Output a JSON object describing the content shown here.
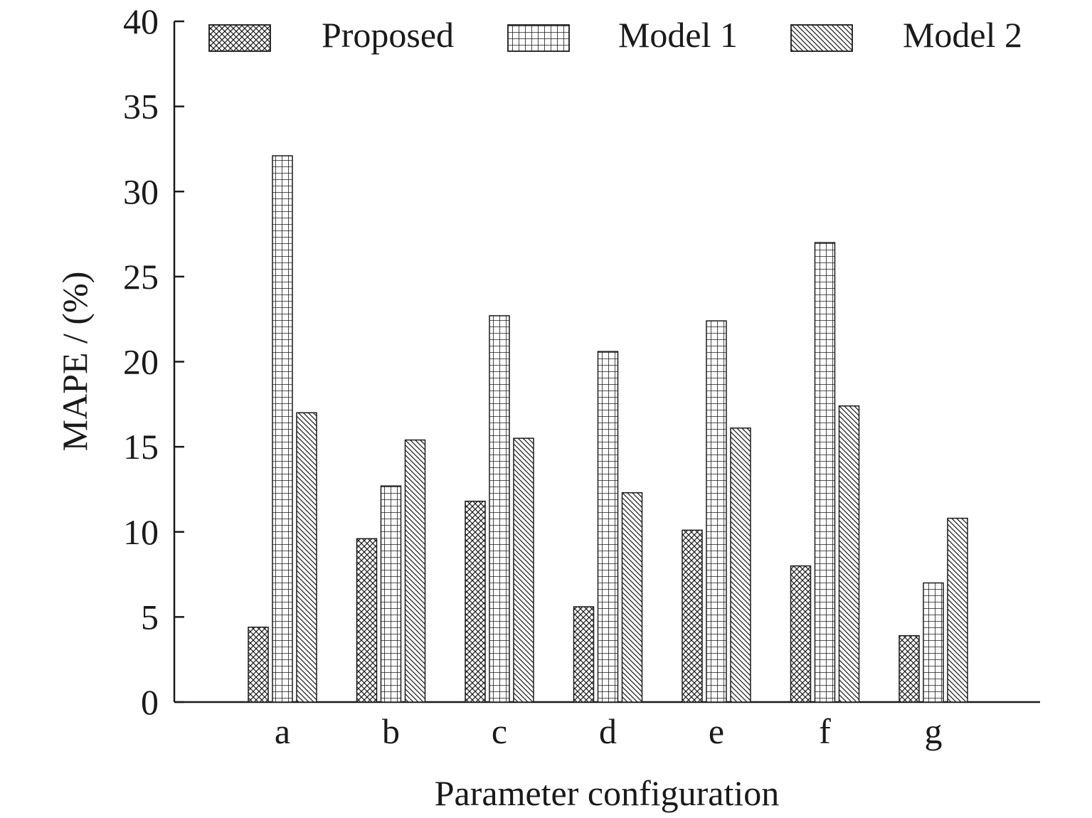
{
  "chart_data": {
    "type": "bar",
    "title": "",
    "xlabel": "Parameter configuration",
    "ylabel": "MAPE / (%)",
    "ylim": [
      0,
      40
    ],
    "yticks": [
      0,
      5,
      10,
      15,
      20,
      25,
      30,
      35,
      40
    ],
    "categories": [
      "a",
      "b",
      "c",
      "d",
      "e",
      "f",
      "g"
    ],
    "grid": false,
    "legend_position": "top",
    "series": [
      {
        "name": "Proposed",
        "pattern": "crosshatch",
        "values": [
          4.4,
          9.6,
          11.8,
          5.6,
          10.1,
          8.0,
          3.9
        ]
      },
      {
        "name": "Model 1",
        "pattern": "grid",
        "values": [
          32.1,
          12.7,
          22.7,
          20.6,
          22.4,
          27.0,
          7.0
        ]
      },
      {
        "name": "Model 2",
        "pattern": "diagonal",
        "values": [
          17.0,
          15.4,
          15.5,
          12.3,
          16.1,
          17.4,
          10.8
        ]
      }
    ],
    "colors": {
      "ink": "#1a1a1a",
      "bar_fill": "#ffffff"
    }
  }
}
